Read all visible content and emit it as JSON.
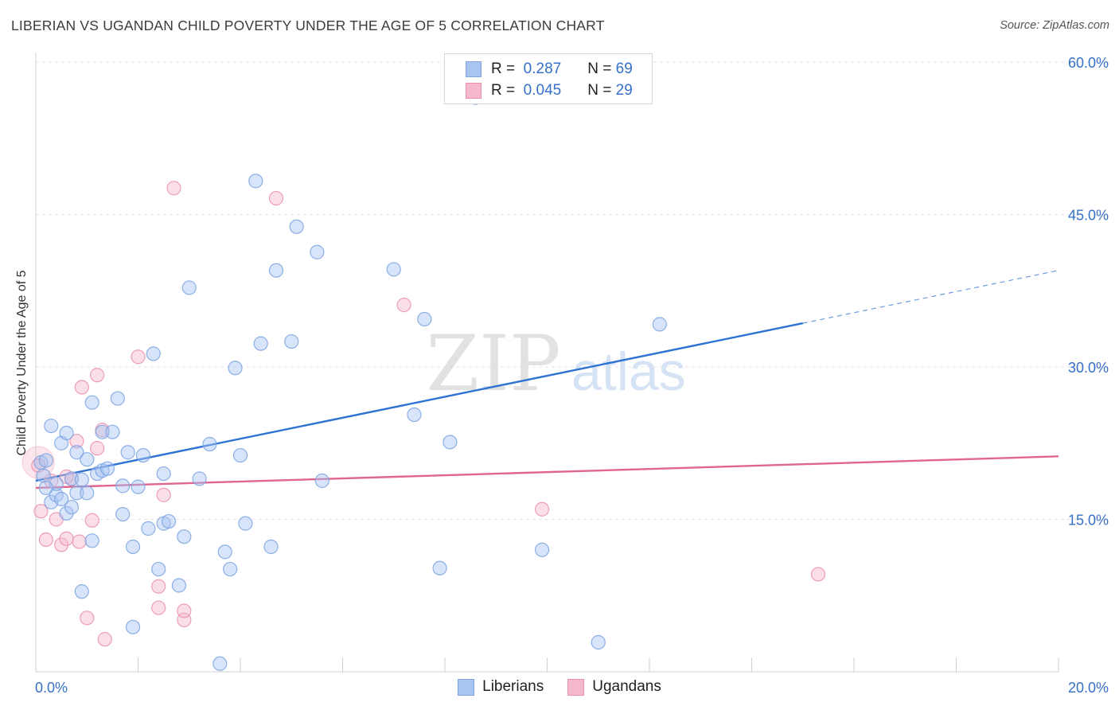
{
  "header": {
    "title": "LIBERIAN VS UGANDAN CHILD POVERTY UNDER THE AGE OF 5 CORRELATION CHART",
    "source": "Source: ZipAtlas.com"
  },
  "watermark": {
    "zip": "ZIP",
    "atlas": "atlas"
  },
  "legend": {
    "rows": [
      {
        "r_label": "R =",
        "r_value": "0.287",
        "n_label": "N =",
        "n_value": "69",
        "color": "#a7c4f2"
      },
      {
        "r_label": "R =",
        "r_value": "0.045",
        "n_label": "N =",
        "n_value": "29",
        "color": "#f6b8cb"
      }
    ]
  },
  "bottom_legend": {
    "liberians": "Liberians",
    "ugandans": "Ugandans"
  },
  "colors": {
    "blue_fill": "#a7c4f2",
    "blue_stroke": "#7aa3e0",
    "blue_line": "#2e72d2",
    "pink_fill": "#f6b8cb",
    "pink_stroke": "#ea8fac",
    "pink_line": "#e0668f",
    "tick_text": "#3570c9",
    "grid": "#e3e3e3"
  },
  "chart_data": {
    "type": "scatter",
    "title": "LIBERIAN VS UGANDAN CHILD POVERTY UNDER THE AGE OF 5 CORRELATION CHART",
    "xlabel": "",
    "ylabel": "Child Poverty Under the Age of 5",
    "xlim": [
      0,
      20
    ],
    "ylim": [
      0,
      60
    ],
    "x_tick_labels": [
      "0.0%",
      "20.0%"
    ],
    "y_ticks": [
      15,
      30,
      45,
      60
    ],
    "y_tick_labels": [
      "15.0%",
      "30.0%",
      "45.0%",
      "60.0%"
    ],
    "grid": true,
    "series": [
      {
        "name": "Liberians",
        "color": "#a7c4f2",
        "points": [
          [
            0.1,
            20.6
          ],
          [
            0.2,
            20.8
          ],
          [
            0.3,
            16.7
          ],
          [
            0.3,
            24.2
          ],
          [
            0.4,
            17.4
          ],
          [
            0.4,
            18.5
          ],
          [
            0.5,
            22.5
          ],
          [
            0.6,
            15.6
          ],
          [
            0.6,
            23.5
          ],
          [
            0.7,
            16.2
          ],
          [
            0.7,
            19.0
          ],
          [
            0.8,
            21.6
          ],
          [
            0.8,
            17.6
          ],
          [
            0.9,
            7.9
          ],
          [
            1.0,
            20.9
          ],
          [
            1.0,
            17.6
          ],
          [
            1.1,
            12.9
          ],
          [
            1.1,
            26.5
          ],
          [
            1.2,
            19.5
          ],
          [
            1.3,
            23.6
          ],
          [
            1.3,
            19.8
          ],
          [
            1.5,
            23.6
          ],
          [
            1.6,
            26.9
          ],
          [
            1.7,
            18.3
          ],
          [
            1.7,
            15.5
          ],
          [
            1.8,
            21.6
          ],
          [
            1.9,
            4.4
          ],
          [
            1.9,
            12.3
          ],
          [
            2.0,
            18.2
          ],
          [
            2.1,
            21.3
          ],
          [
            2.2,
            14.1
          ],
          [
            2.3,
            31.3
          ],
          [
            2.4,
            10.1
          ],
          [
            2.5,
            14.6
          ],
          [
            2.5,
            19.5
          ],
          [
            2.6,
            14.8
          ],
          [
            2.8,
            8.5
          ],
          [
            2.9,
            13.3
          ],
          [
            3.0,
            37.8
          ],
          [
            3.2,
            19.0
          ],
          [
            3.4,
            22.4
          ],
          [
            3.6,
            0.8
          ],
          [
            3.7,
            11.8
          ],
          [
            3.8,
            10.1
          ],
          [
            3.9,
            29.9
          ],
          [
            4.0,
            21.3
          ],
          [
            4.1,
            14.6
          ],
          [
            4.3,
            48.3
          ],
          [
            4.4,
            32.3
          ],
          [
            4.6,
            12.3
          ],
          [
            4.7,
            39.5
          ],
          [
            5.0,
            32.5
          ],
          [
            5.1,
            43.8
          ],
          [
            5.5,
            41.3
          ],
          [
            5.6,
            18.8
          ],
          [
            7.0,
            39.6
          ],
          [
            7.4,
            25.3
          ],
          [
            7.6,
            34.7
          ],
          [
            7.9,
            10.2
          ],
          [
            8.1,
            22.6
          ],
          [
            8.6,
            56.5
          ],
          [
            9.9,
            12.0
          ],
          [
            11.0,
            2.9
          ],
          [
            12.2,
            34.2
          ],
          [
            0.15,
            19.3
          ],
          [
            0.2,
            18.1
          ],
          [
            0.5,
            17.0
          ],
          [
            0.9,
            18.9
          ],
          [
            1.4,
            20.0
          ]
        ]
      },
      {
        "name": "Ugandans",
        "color": "#f6b8cb",
        "points": [
          [
            0.05,
            20.3
          ],
          [
            0.1,
            15.8
          ],
          [
            0.2,
            13.0
          ],
          [
            0.3,
            18.8
          ],
          [
            0.4,
            15.0
          ],
          [
            0.5,
            12.5
          ],
          [
            0.6,
            13.1
          ],
          [
            0.7,
            19.0
          ],
          [
            0.8,
            22.7
          ],
          [
            0.85,
            12.8
          ],
          [
            0.9,
            28.0
          ],
          [
            1.0,
            5.3
          ],
          [
            1.1,
            14.9
          ],
          [
            1.2,
            29.2
          ],
          [
            1.3,
            23.8
          ],
          [
            1.35,
            3.2
          ],
          [
            2.0,
            31.0
          ],
          [
            2.4,
            8.4
          ],
          [
            2.4,
            6.3
          ],
          [
            2.5,
            17.4
          ],
          [
            2.7,
            47.6
          ],
          [
            2.9,
            5.1
          ],
          [
            2.9,
            6.0
          ],
          [
            4.7,
            46.6
          ],
          [
            7.2,
            36.1
          ],
          [
            9.9,
            16.0
          ],
          [
            15.3,
            9.6
          ],
          [
            0.6,
            19.2
          ],
          [
            1.2,
            22.0
          ]
        ]
      }
    ],
    "trend_lines": [
      {
        "series": "Liberians",
        "x_start": 0.0,
        "y_start": 18.8,
        "x_end": 15.0,
        "y_end": 34.3,
        "dashed_to_x": 20.0,
        "dashed_to_y": 39.5
      },
      {
        "series": "Ugandans",
        "x_start": 0.0,
        "y_start": 18.1,
        "x_end": 20.0,
        "y_end": 21.2
      }
    ]
  }
}
